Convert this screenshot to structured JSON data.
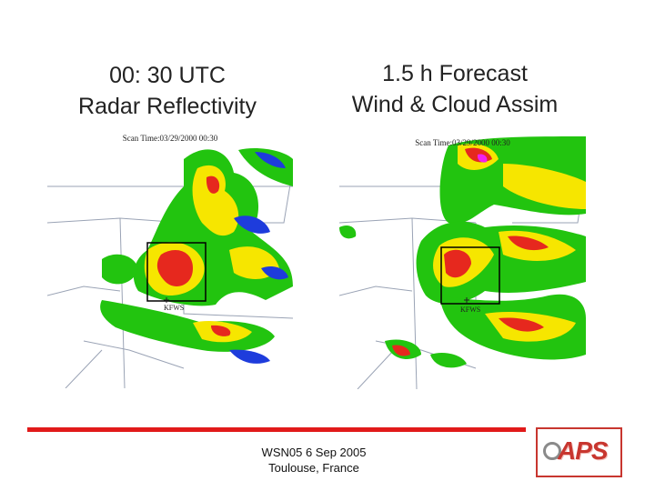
{
  "left_panel": {
    "title_line1": "00: 30 UTC",
    "title_line2": "Radar Reflectivity",
    "scan_time": "Scan Time:03/29/2000 00:30",
    "station": "KFWS"
  },
  "right_panel": {
    "title_line1": "1.5 h Forecast",
    "title_line2": "Wind & Cloud Assim",
    "scan_time": "Scan Time:03/29/2000 00:30",
    "station": "KFWS"
  },
  "footer": {
    "line1": "WSN05 6 Sep 2005",
    "line2": "Toulouse, France"
  },
  "logo": {
    "text": "APS"
  },
  "colors": {
    "accent_line": "#e11a1a",
    "logo": "#c8362f",
    "reflectivity_green": "#22c40f",
    "reflectivity_yellow": "#f6e600",
    "reflectivity_red": "#e6281e",
    "reflectivity_blue": "#1e3cdc",
    "reflectivity_magenta": "#f020f0"
  }
}
